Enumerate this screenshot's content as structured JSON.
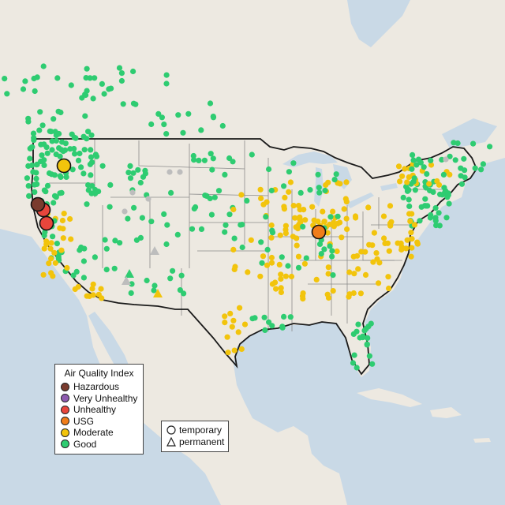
{
  "legend": {
    "title": "Air Quality Index",
    "categories": [
      {
        "label": "Hazardous",
        "color": "#7a3b2e"
      },
      {
        "label": "Very Unhealthy",
        "color": "#8e5bb0"
      },
      {
        "label": "Unhealthy",
        "color": "#e8463c"
      },
      {
        "label": "USG",
        "color": "#f07d1a"
      },
      {
        "label": "Moderate",
        "color": "#f2c40c"
      },
      {
        "label": "Good",
        "color": "#2ecc71"
      }
    ]
  },
  "shape_legend": {
    "items": [
      {
        "label": "temporary",
        "shape": "circle-icon"
      },
      {
        "label": "permanent",
        "shape": "triangle-icon"
      }
    ]
  },
  "colors": {
    "ocean": "#c9d9e6",
    "land": "#ede9e1",
    "border": "#1a1a1a",
    "state_line": "#8a8a8a",
    "no_data": "#bdbdbd"
  }
}
